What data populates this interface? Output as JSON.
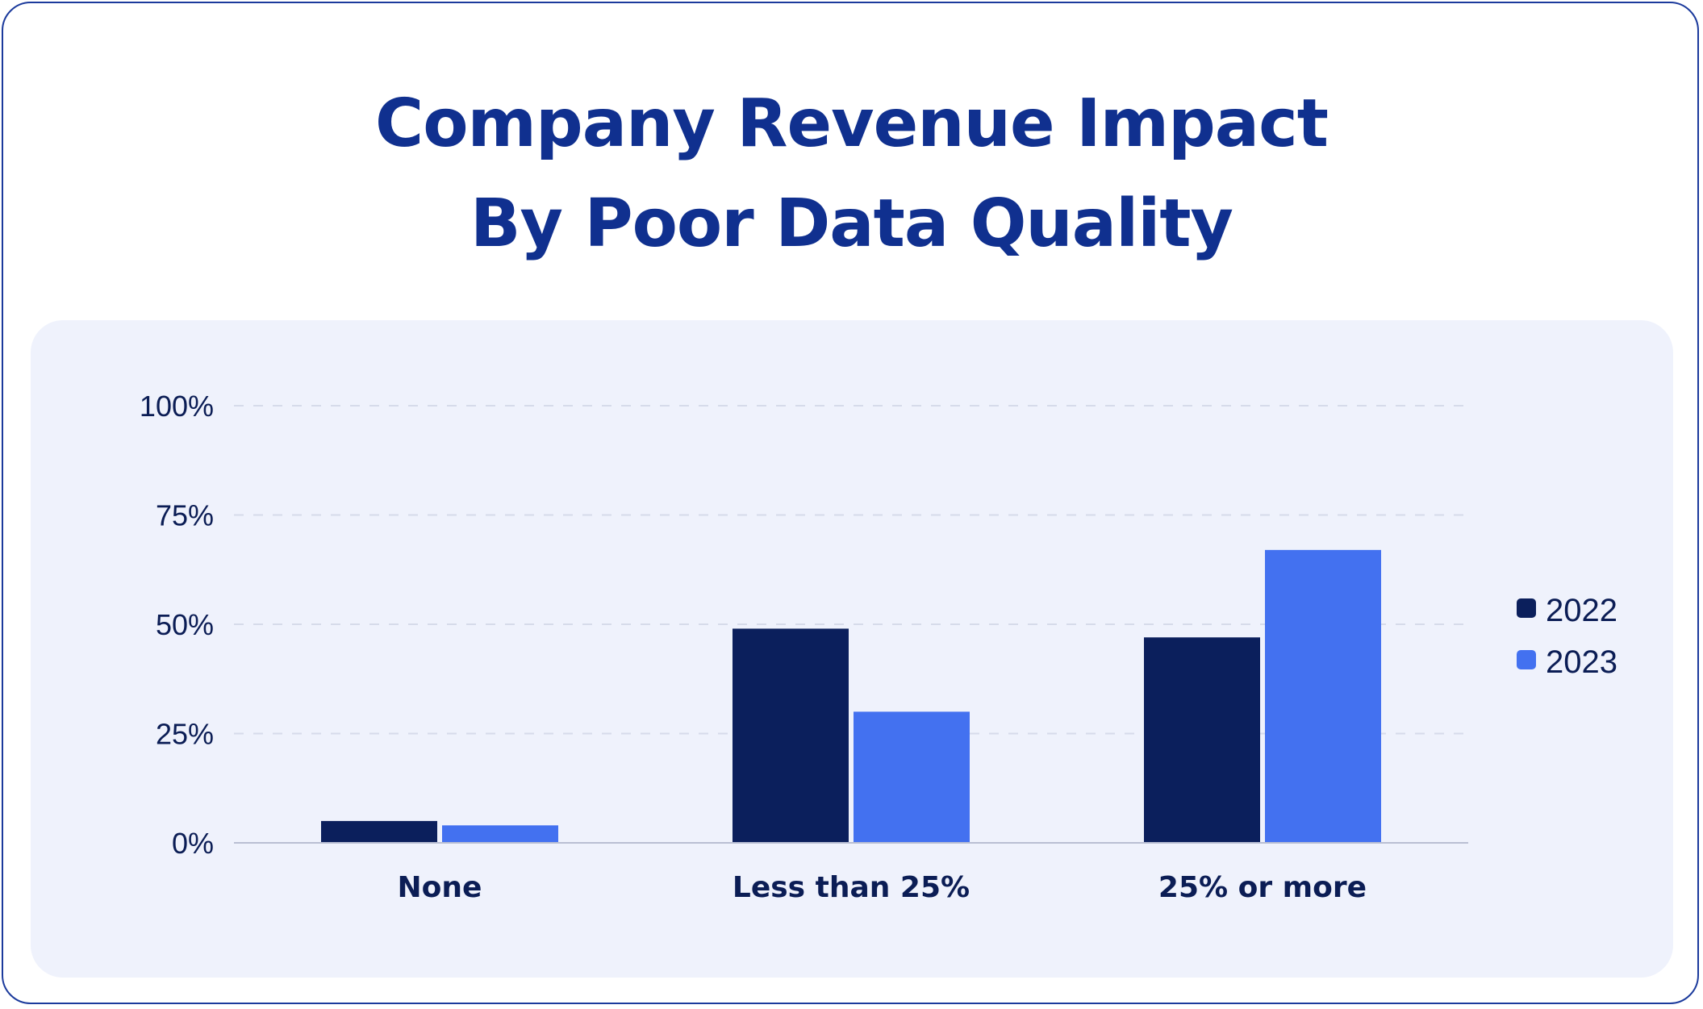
{
  "chart_data": {
    "type": "bar",
    "title_lines": [
      "Company Revenue Impact",
      "By Poor Data Quality"
    ],
    "categories": [
      "None",
      "Less than 25%",
      "25% or more"
    ],
    "series": [
      {
        "name": "2022",
        "color": "#0b1f5c",
        "values": [
          5,
          49,
          47
        ]
      },
      {
        "name": "2023",
        "color": "#4371f0",
        "values": [
          4,
          30,
          67
        ]
      }
    ],
    "y_ticks": [
      "0%",
      "25%",
      "50%",
      "75%",
      "100%"
    ],
    "ylim": [
      0,
      100
    ],
    "grid": true,
    "legend_position": "right"
  }
}
